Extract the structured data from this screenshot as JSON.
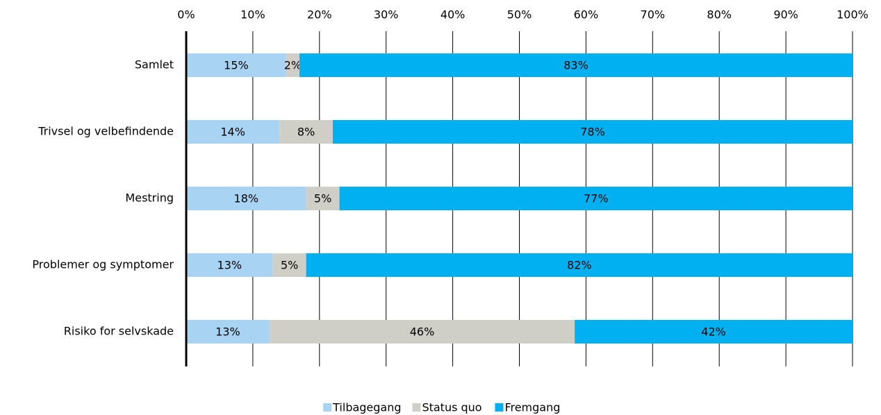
{
  "chart_data": {
    "type": "stacked_bar_horizontal",
    "categories": [
      "Samlet",
      "Trivsel og velbefindende",
      "Mestring",
      "Problemer og symptomer",
      "Risiko for selvskade"
    ],
    "series": [
      {
        "name": "Tilbagegang",
        "color": "#a9d3f3",
        "values": [
          15,
          14,
          18,
          13,
          12.5
        ],
        "value_labels": [
          "15%",
          "14%",
          "18%",
          "13%",
          "13%"
        ]
      },
      {
        "name": "Status quo",
        "color": "#cfcec7",
        "values": [
          2,
          8,
          5,
          5,
          45.8
        ],
        "value_labels": [
          "2%",
          "8%",
          "5%",
          "5%",
          "46%"
        ]
      },
      {
        "name": "Fremgang",
        "color": "#00b0f0",
        "values": [
          83,
          78,
          77,
          82,
          41.7
        ],
        "value_labels": [
          "83%",
          "78%",
          "77%",
          "82%",
          "42%"
        ]
      }
    ],
    "xlim": [
      0,
      100
    ],
    "xticks": [
      {
        "value": 0,
        "label": "0%"
      },
      {
        "value": 10,
        "label": "10%"
      },
      {
        "value": 20,
        "label": "20%"
      },
      {
        "value": 30,
        "label": "30%"
      },
      {
        "value": 40,
        "label": "40%"
      },
      {
        "value": 50,
        "label": "50%"
      },
      {
        "value": 60,
        "label": "60%"
      },
      {
        "value": 70,
        "label": "70%"
      },
      {
        "value": 80,
        "label": "80%"
      },
      {
        "value": 90,
        "label": "90%"
      },
      {
        "value": 100,
        "label": "100%"
      }
    ],
    "grid": true,
    "legend": "bottom"
  }
}
